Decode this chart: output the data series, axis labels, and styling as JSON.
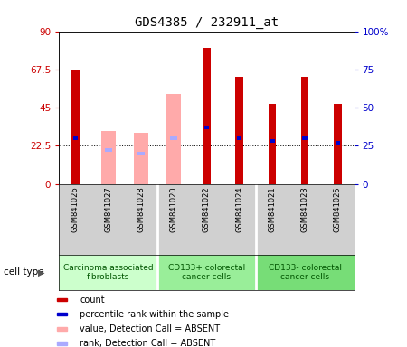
{
  "title": "GDS4385 / 232911_at",
  "samples": [
    "GSM841026",
    "GSM841027",
    "GSM841028",
    "GSM841020",
    "GSM841022",
    "GSM841024",
    "GSM841021",
    "GSM841023",
    "GSM841025"
  ],
  "count_values": [
    67.5,
    0,
    0,
    0,
    80,
    63,
    47,
    63,
    47
  ],
  "value_absent": [
    0,
    31,
    30,
    53,
    0,
    0,
    0,
    0,
    0
  ],
  "rank_values": [
    30,
    0,
    0,
    0,
    37,
    30,
    28,
    30,
    27
  ],
  "rank_absent": [
    0,
    22,
    20,
    30,
    0,
    0,
    0,
    0,
    0
  ],
  "cell_groups": [
    {
      "label": "Carcinoma associated\nfibroblasts",
      "start": 0,
      "end": 3,
      "color": "#ccffcc"
    },
    {
      "label": "CD133+ colorectal\ncancer cells",
      "start": 3,
      "end": 6,
      "color": "#99ee99"
    },
    {
      "label": "CD133- colorectal\ncancer cells",
      "start": 6,
      "end": 9,
      "color": "#77dd77"
    }
  ],
  "ylim_left": [
    0,
    90
  ],
  "ylim_right": [
    0,
    100
  ],
  "yticks_left": [
    0,
    22.5,
    45,
    67.5,
    90
  ],
  "yticks_right": [
    0,
    25,
    50,
    75,
    100
  ],
  "ytick_labels_left": [
    "0",
    "22.5",
    "45",
    "67.5",
    "90"
  ],
  "ytick_labels_right": [
    "0",
    "25",
    "50",
    "75",
    "100%"
  ],
  "color_count": "#cc0000",
  "color_rank": "#0000cc",
  "color_value_absent": "#ffaaaa",
  "color_rank_absent": "#aaaaff",
  "bar_width": 0.4,
  "rank_bar_width": 0.15,
  "legend_items": [
    {
      "label": "count",
      "color": "#cc0000"
    },
    {
      "label": "percentile rank within the sample",
      "color": "#0000cc"
    },
    {
      "label": "value, Detection Call = ABSENT",
      "color": "#ffaaaa"
    },
    {
      "label": "rank, Detection Call = ABSENT",
      "color": "#aaaaff"
    }
  ],
  "cell_type_label": "cell type"
}
